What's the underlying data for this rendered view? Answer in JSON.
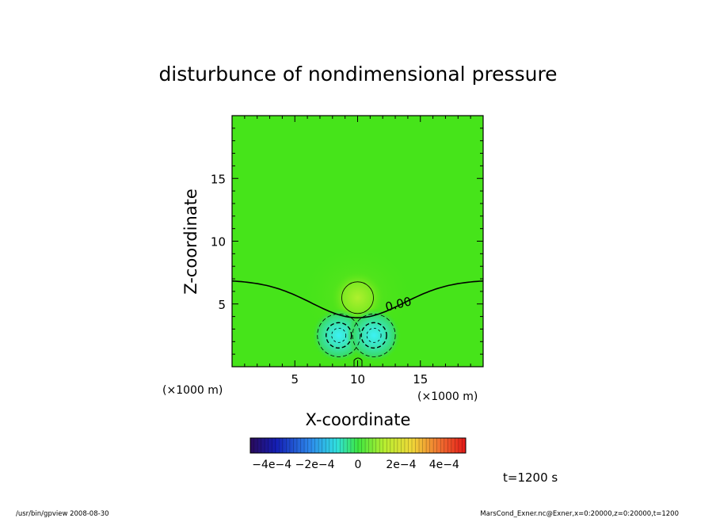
{
  "chart_data": {
    "type": "heatmap",
    "title": "disturbunce of nondimensional pressure",
    "xlabel": "X-coordinate",
    "ylabel": "Z-coordinate",
    "x_unit_label": "(×1000 m)",
    "y_unit_label": "(×1000 m)",
    "xlim": [
      0,
      20
    ],
    "ylim": [
      0,
      20
    ],
    "xticks": [
      5,
      10,
      15
    ],
    "yticks": [
      5,
      10,
      15
    ],
    "zero_contour_label": "0.00",
    "colorbar": {
      "min": -0.0005,
      "max": 0.0005,
      "tick_labels": [
        "−4e−4",
        "−2e−4",
        "0",
        "2e−4",
        "4e−4"
      ],
      "tick_values": [
        -0.0004,
        -0.0002,
        0,
        0.0002,
        0.0004
      ]
    },
    "features": [
      {
        "name": "positive-bubble",
        "x": 10,
        "z": 5.5,
        "sign": "positive"
      },
      {
        "name": "negative-cell-left",
        "x": 8.5,
        "z": 2.5,
        "sign": "negative"
      },
      {
        "name": "negative-cell-right",
        "x": 11.3,
        "z": 2.5,
        "sign": "negative"
      }
    ],
    "time_label": "t=1200 s"
  },
  "footer": {
    "left": "/usr/bin/gpview   2008-08-30",
    "right": "MarsCond_Exner.nc@Exner,x=0:20000,z=0:20000,t=1200"
  }
}
